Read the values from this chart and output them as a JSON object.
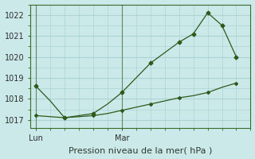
{
  "line1_x": [
    0,
    0.5,
    1.0,
    1.5,
    2.0,
    2.5,
    3.0,
    3.5,
    4.0,
    4.5,
    5.0,
    5.5,
    6.0,
    6.5,
    7.0
  ],
  "line1_y": [
    1018.6,
    1017.9,
    1017.1,
    1017.2,
    1017.3,
    1017.75,
    1018.3,
    1019.0,
    1019.7,
    1020.2,
    1020.7,
    1021.1,
    1022.1,
    1021.5,
    1020.0
  ],
  "line2_x": [
    0,
    0.5,
    1.0,
    1.5,
    2.0,
    2.5,
    3.0,
    3.5,
    4.0,
    4.5,
    5.0,
    5.5,
    6.0,
    6.5,
    7.0
  ],
  "line2_y": [
    1017.2,
    1017.15,
    1017.1,
    1017.15,
    1017.2,
    1017.3,
    1017.45,
    1017.6,
    1017.75,
    1017.9,
    1018.05,
    1018.15,
    1018.3,
    1018.55,
    1018.75
  ],
  "line1_markers_x": [
    0,
    1.0,
    2.0,
    3.0,
    4.0,
    5.0,
    5.5,
    6.0,
    6.5,
    7.0
  ],
  "line1_markers_y": [
    1018.6,
    1017.1,
    1017.3,
    1018.3,
    1019.7,
    1020.7,
    1021.1,
    1022.1,
    1021.5,
    1020.0
  ],
  "line2_markers_x": [
    0,
    1.0,
    2.0,
    3.0,
    4.0,
    5.0,
    6.0,
    7.0
  ],
  "line2_markers_y": [
    1017.2,
    1017.1,
    1017.2,
    1017.45,
    1017.75,
    1018.05,
    1018.3,
    1018.75
  ],
  "line_color": "#2d5a1b",
  "bg_color": "#cce9ea",
  "grid_color": "#b8dfe0",
  "ylim": [
    1016.6,
    1022.5
  ],
  "yticks": [
    1017,
    1018,
    1019,
    1020,
    1021,
    1022
  ],
  "xlabel": "Pression niveau de la mer( hPa )",
  "xtick_positions": [
    0,
    3.0
  ],
  "xtick_labels": [
    "Lun",
    "Mar"
  ],
  "vline_positions": [
    0,
    3.0
  ],
  "xlim": [
    -0.2,
    7.5
  ],
  "label_fontsize": 8,
  "tick_fontsize": 7
}
